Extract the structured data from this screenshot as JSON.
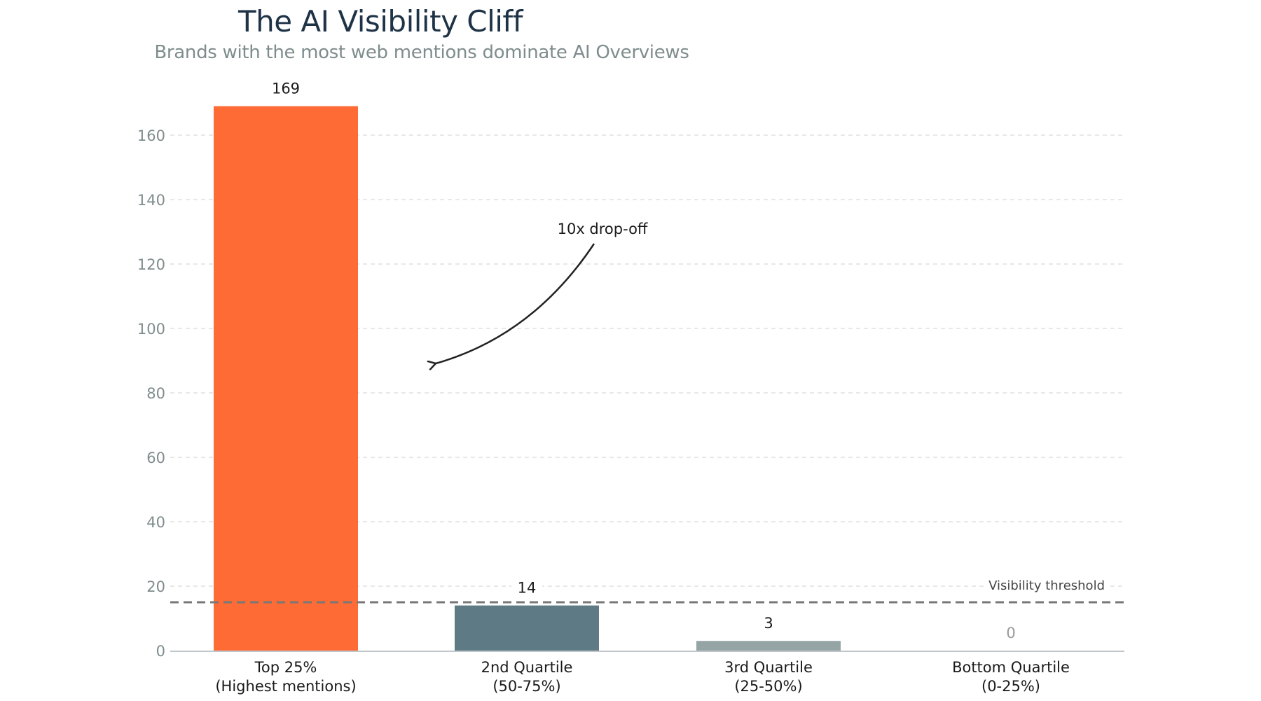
{
  "chart_data": {
    "type": "bar",
    "title": "The AI Visibility Cliff",
    "subtitle": "Brands with the most web mentions dominate AI Overviews",
    "xlabel": "",
    "ylabel": "",
    "ylim": [
      0,
      175
    ],
    "yticks": [
      0,
      20,
      40,
      60,
      80,
      100,
      120,
      140,
      160
    ],
    "grid": true,
    "categories": [
      [
        "Top 25%",
        "(Highest mentions)"
      ],
      [
        "2nd Quartile",
        "(50-75%)"
      ],
      [
        "3rd Quartile",
        "(25-50%)"
      ],
      [
        "Bottom Quartile",
        "(0-25%)"
      ]
    ],
    "values": [
      169,
      14,
      3,
      0
    ],
    "value_labels": [
      "169",
      "14",
      "3",
      "0"
    ],
    "colors": [
      "#ff6b35",
      "#5d7a85",
      "#95a5a6",
      "#bdc3c7"
    ],
    "threshold": {
      "value": 15,
      "label": "Visibility threshold",
      "color": "#777777"
    },
    "annotation": {
      "text": "10x drop-off",
      "arrow_to_value": 90,
      "arrow_to_category_index": 0.5
    }
  }
}
